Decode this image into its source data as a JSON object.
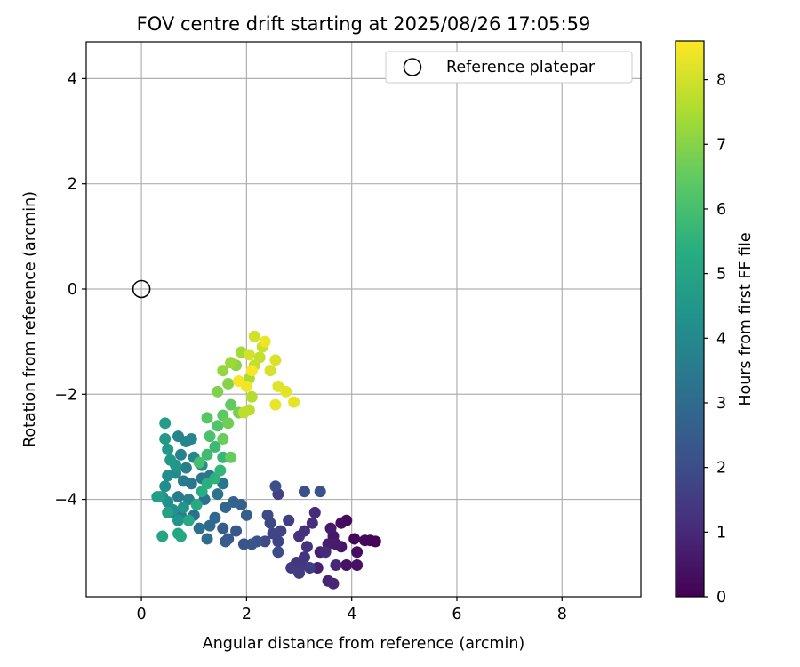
{
  "chart_data": {
    "type": "scatter",
    "title": "FOV centre drift starting at 2025/08/26 17:05:59",
    "xlabel": "Angular distance from reference (arcmin)",
    "ylabel": "Rotation from reference (arcmin)",
    "xlim": [
      -1.05,
      9.5
    ],
    "ylim": [
      -5.85,
      4.7
    ],
    "xticks": [
      0,
      2,
      4,
      6,
      8
    ],
    "yticks": [
      -4,
      -2,
      0,
      2,
      4
    ],
    "grid": true,
    "legend": {
      "placement": "upper right",
      "entries": [
        "Reference platepar"
      ]
    },
    "reference_point": {
      "x": 0,
      "y": 0,
      "label": "Reference platepar"
    },
    "colorbar": {
      "label": "Hours from first FF file",
      "min": 0,
      "max": 8.6,
      "ticks": [
        0,
        1,
        2,
        3,
        4,
        5,
        6,
        7,
        8
      ],
      "colormap": "viridis"
    },
    "series": [
      {
        "points": [
          [
            4.45,
            -4.8,
            0.05
          ],
          [
            4.35,
            -4.78,
            0.1
          ],
          [
            4.25,
            -4.78,
            0.15
          ],
          [
            4.05,
            -4.75,
            0.2
          ],
          [
            3.9,
            -4.4,
            0.25
          ],
          [
            3.8,
            -4.45,
            0.3
          ],
          [
            4.1,
            -5.0,
            0.35
          ],
          [
            4.1,
            -5.25,
            0.4
          ],
          [
            3.9,
            -5.25,
            0.45
          ],
          [
            3.8,
            -4.9,
            0.5
          ],
          [
            3.65,
            -4.7,
            0.55
          ],
          [
            3.6,
            -4.55,
            0.6
          ],
          [
            3.7,
            -4.85,
            0.65
          ],
          [
            3.55,
            -4.85,
            0.7
          ],
          [
            3.4,
            -5.0,
            0.75
          ],
          [
            3.35,
            -5.3,
            0.8
          ],
          [
            3.55,
            -5.55,
            0.85
          ],
          [
            3.65,
            -5.6,
            0.9
          ],
          [
            3.7,
            -5.25,
            0.95
          ],
          [
            3.5,
            -5.0,
            1.0
          ],
          [
            3.3,
            -4.25,
            1.05
          ],
          [
            3.25,
            -4.45,
            1.1
          ],
          [
            3.1,
            -4.6,
            1.15
          ],
          [
            3.0,
            -4.7,
            1.2
          ],
          [
            3.15,
            -4.9,
            1.25
          ],
          [
            3.1,
            -5.1,
            1.3
          ],
          [
            3.05,
            -5.25,
            1.35
          ],
          [
            2.95,
            -5.2,
            1.4
          ],
          [
            2.85,
            -5.3,
            1.45
          ],
          [
            3.2,
            -5.3,
            1.5
          ],
          [
            3.0,
            -5.4,
            1.55
          ],
          [
            2.8,
            -4.4,
            1.6
          ],
          [
            2.6,
            -3.9,
            1.65
          ],
          [
            2.65,
            -4.6,
            1.7
          ],
          [
            2.6,
            -4.8,
            1.75
          ],
          [
            2.5,
            -4.65,
            1.8
          ],
          [
            2.45,
            -4.45,
            1.85
          ],
          [
            2.4,
            -4.3,
            1.9
          ],
          [
            2.35,
            -4.8,
            1.95
          ],
          [
            2.6,
            -5.0,
            2.0
          ],
          [
            2.55,
            -3.75,
            2.05
          ],
          [
            3.1,
            -3.85,
            2.1
          ],
          [
            3.4,
            -3.85,
            2.15
          ],
          [
            2.2,
            -4.8,
            2.2
          ],
          [
            2.1,
            -4.85,
            2.25
          ],
          [
            1.95,
            -4.85,
            2.3
          ],
          [
            1.8,
            -4.6,
            2.35
          ],
          [
            1.65,
            -4.75,
            2.4
          ],
          [
            1.6,
            -4.8,
            2.45
          ],
          [
            1.55,
            -4.55,
            2.5
          ],
          [
            2.0,
            -4.3,
            2.55
          ],
          [
            1.9,
            -4.1,
            2.6
          ],
          [
            1.75,
            -4.05,
            2.7
          ],
          [
            1.6,
            -4.15,
            2.8
          ],
          [
            1.4,
            -4.35,
            2.9
          ],
          [
            1.3,
            -4.5,
            3.0
          ],
          [
            1.25,
            -4.75,
            3.05
          ],
          [
            1.1,
            -4.55,
            3.1
          ],
          [
            1.0,
            -4.3,
            3.15
          ],
          [
            1.2,
            -4.0,
            3.2
          ],
          [
            1.45,
            -3.9,
            3.25
          ],
          [
            1.55,
            -3.7,
            3.3
          ],
          [
            1.3,
            -3.55,
            3.35
          ],
          [
            1.15,
            -3.6,
            3.4
          ],
          [
            0.95,
            -3.7,
            3.45
          ],
          [
            0.8,
            -3.65,
            3.5
          ],
          [
            0.7,
            -3.95,
            3.55
          ],
          [
            0.6,
            -4.25,
            3.6
          ],
          [
            0.75,
            -4.3,
            3.65
          ],
          [
            0.9,
            -4.0,
            3.7
          ],
          [
            0.85,
            -3.4,
            3.75
          ],
          [
            0.75,
            -3.15,
            3.8
          ],
          [
            0.7,
            -2.8,
            3.85
          ],
          [
            0.85,
            -2.9,
            3.9
          ],
          [
            0.95,
            -2.85,
            3.95
          ],
          [
            1.0,
            -3.2,
            4.0
          ],
          [
            1.15,
            -3.35,
            4.05
          ],
          [
            0.65,
            -3.5,
            4.1
          ],
          [
            0.5,
            -3.55,
            4.15
          ],
          [
            0.45,
            -3.75,
            4.2
          ],
          [
            0.4,
            -3.95,
            4.25
          ],
          [
            0.5,
            -4.05,
            4.3
          ],
          [
            0.6,
            -4.2,
            4.35
          ],
          [
            0.7,
            -4.4,
            4.4
          ],
          [
            0.8,
            -4.15,
            4.45
          ],
          [
            0.65,
            -3.35,
            4.5
          ],
          [
            0.55,
            -3.25,
            4.55
          ],
          [
            0.5,
            -3.05,
            4.6
          ],
          [
            0.45,
            -2.85,
            4.65
          ],
          [
            0.45,
            -2.55,
            4.7
          ],
          [
            0.35,
            -3.95,
            4.75
          ],
          [
            0.3,
            -3.95,
            4.8
          ],
          [
            0.5,
            -4.25,
            4.9
          ],
          [
            0.4,
            -4.7,
            5.0
          ],
          [
            0.7,
            -4.65,
            5.05
          ],
          [
            0.75,
            -4.7,
            5.1
          ],
          [
            0.9,
            -4.4,
            5.15
          ],
          [
            1.05,
            -4.1,
            5.2
          ],
          [
            1.15,
            -3.85,
            5.3
          ],
          [
            1.25,
            -3.7,
            5.4
          ],
          [
            1.4,
            -3.6,
            5.5
          ],
          [
            1.5,
            -3.45,
            5.6
          ],
          [
            1.55,
            -3.2,
            5.7
          ],
          [
            1.4,
            -3.0,
            5.8
          ],
          [
            1.25,
            -3.15,
            5.9
          ],
          [
            1.1,
            -3.3,
            6.0
          ],
          [
            1.3,
            -2.8,
            6.1
          ],
          [
            1.45,
            -2.6,
            6.2
          ],
          [
            1.25,
            -2.45,
            6.3
          ],
          [
            1.55,
            -2.4,
            6.4
          ],
          [
            1.7,
            -2.2,
            6.5
          ],
          [
            1.7,
            -3.2,
            6.55
          ],
          [
            1.55,
            -2.85,
            6.6
          ],
          [
            1.65,
            -2.55,
            6.7
          ],
          [
            1.85,
            -2.35,
            6.8
          ],
          [
            1.45,
            -1.95,
            6.9
          ],
          [
            1.65,
            -1.8,
            7.0
          ],
          [
            1.8,
            -1.45,
            7.1
          ],
          [
            1.55,
            -1.55,
            7.2
          ],
          [
            1.7,
            -1.4,
            7.3
          ],
          [
            1.9,
            -1.2,
            7.4
          ],
          [
            2.05,
            -1.7,
            7.5
          ],
          [
            2.1,
            -2.05,
            7.6
          ],
          [
            2.05,
            -2.3,
            7.7
          ],
          [
            1.95,
            -2.35,
            7.75
          ],
          [
            2.15,
            -1.45,
            7.8
          ],
          [
            2.25,
            -1.3,
            7.85
          ],
          [
            2.3,
            -1.1,
            7.9
          ],
          [
            2.15,
            -0.9,
            8.0
          ],
          [
            2.05,
            -1.25,
            8.05
          ],
          [
            2.45,
            -1.55,
            8.1
          ],
          [
            2.55,
            -1.35,
            8.15
          ],
          [
            2.6,
            -1.85,
            8.2
          ],
          [
            2.75,
            -1.95,
            8.25
          ],
          [
            2.9,
            -2.15,
            8.3
          ],
          [
            2.55,
            -2.2,
            8.35
          ],
          [
            2.35,
            -1.0,
            8.4
          ],
          [
            2.0,
            -1.85,
            8.45
          ],
          [
            1.85,
            -1.75,
            8.5
          ],
          [
            2.1,
            -1.55,
            8.55
          ]
        ]
      }
    ]
  }
}
